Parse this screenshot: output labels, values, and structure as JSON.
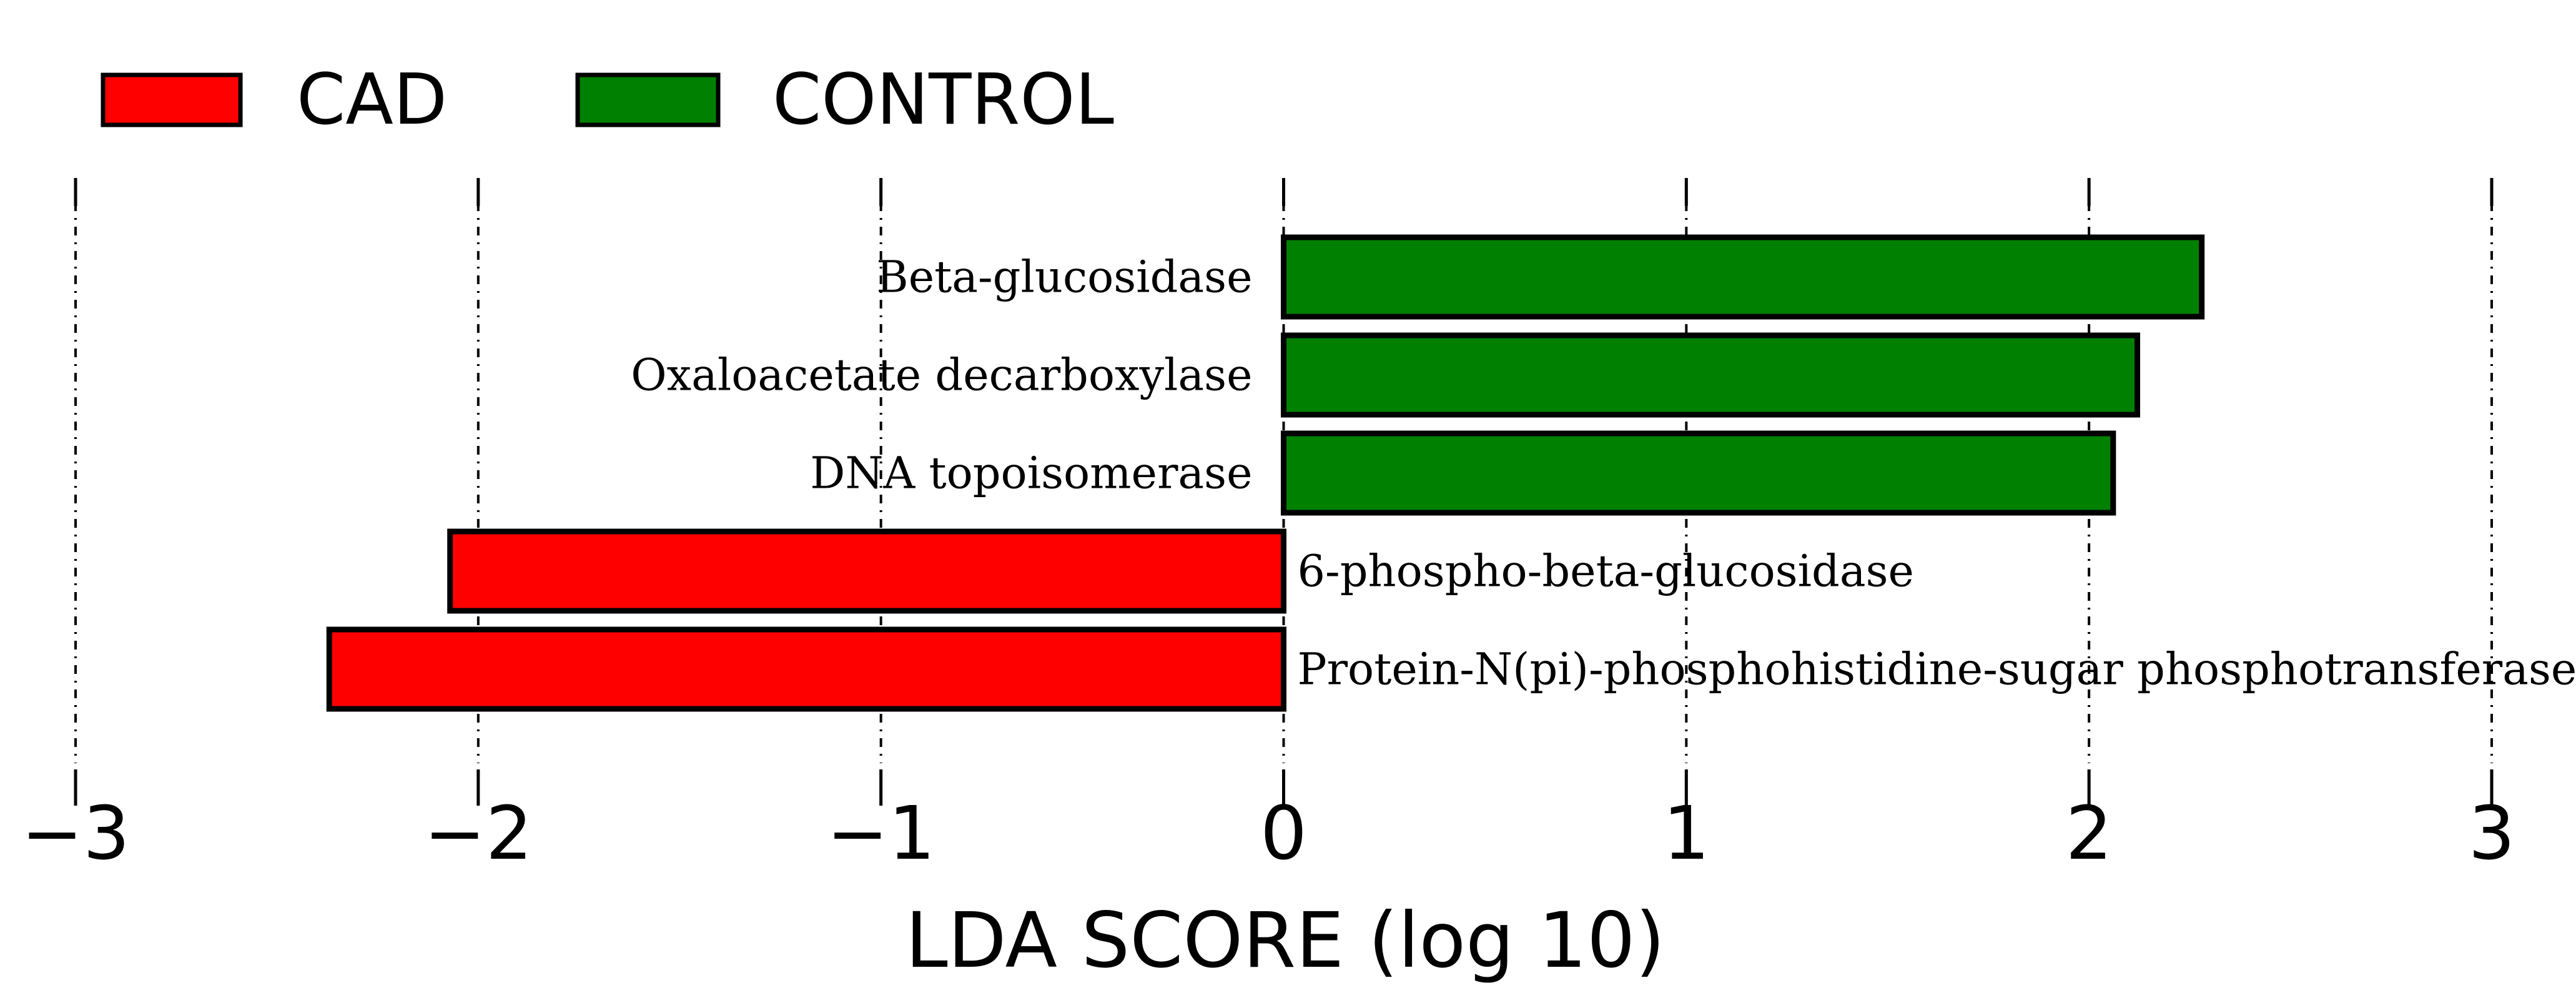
{
  "chart_data": {
    "type": "bar",
    "orientation": "horizontal",
    "xlabel": "LDA SCORE (log 10)",
    "xlim": [
      -3,
      3
    ],
    "xticks": [
      -3,
      -2,
      -1,
      0,
      1,
      2,
      3
    ],
    "xtick_labels": [
      "−3",
      "−2",
      "−1",
      "0",
      "1",
      "2",
      "3"
    ],
    "grid": "vertical dashed",
    "legend": {
      "placement": "top-left",
      "entries": [
        {
          "name": "CAD",
          "color": "#ff0000"
        },
        {
          "name": "CONTROL",
          "color": "#008000"
        }
      ]
    },
    "categories": [
      "Beta-glucosidase",
      "Oxaloacetate decarboxylase",
      "DNA topoisomerase",
      "6-phospho-beta-glucosidase",
      "Protein-N(pi)-phosphohistidine-sugar phosphotransferase"
    ],
    "series": [
      {
        "name": "CONTROL",
        "color": "#008000",
        "values": [
          2.28,
          2.12,
          2.06,
          null,
          null
        ]
      },
      {
        "name": "CAD",
        "color": "#ff0000",
        "values": [
          null,
          null,
          null,
          -2.07,
          -2.37
        ]
      }
    ]
  }
}
